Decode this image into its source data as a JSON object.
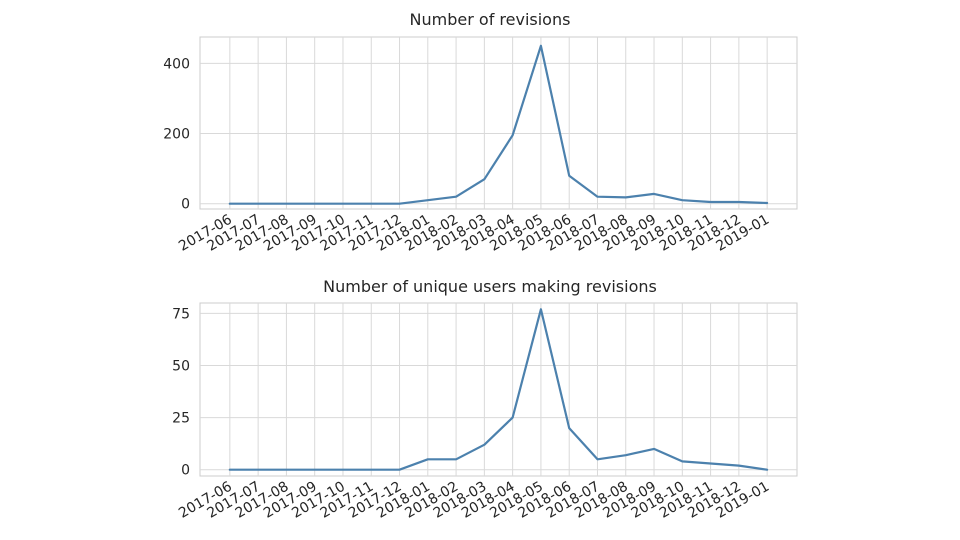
{
  "chart_data": [
    {
      "type": "line",
      "title": "Number of revisions",
      "xlabel": "",
      "ylabel": "",
      "x": [
        "2017-06",
        "2017-07",
        "2017-08",
        "2017-09",
        "2017-10",
        "2017-11",
        "2017-12",
        "2018-01",
        "2018-02",
        "2018-03",
        "2018-04",
        "2018-05",
        "2018-06",
        "2018-07",
        "2018-08",
        "2018-09",
        "2018-10",
        "2018-11",
        "2018-12",
        "2019-01"
      ],
      "series": [
        {
          "values": [
            0,
            0,
            0,
            0,
            0,
            0,
            0,
            10,
            20,
            70,
            195,
            450,
            80,
            20,
            18,
            28,
            10,
            5,
            5,
            2
          ]
        }
      ],
      "ylim": [
        -15,
        475
      ],
      "yticks": [
        0,
        200,
        400
      ],
      "grid": true,
      "color": "#4c81ad"
    },
    {
      "type": "line",
      "title": "Number of unique users making revisions",
      "xlabel": "",
      "ylabel": "",
      "x": [
        "2017-06",
        "2017-07",
        "2017-08",
        "2017-09",
        "2017-10",
        "2017-11",
        "2017-12",
        "2018-01",
        "2018-02",
        "2018-03",
        "2018-04",
        "2018-05",
        "2018-06",
        "2018-07",
        "2018-08",
        "2018-09",
        "2018-10",
        "2018-11",
        "2018-12",
        "2019-01"
      ],
      "series": [
        {
          "values": [
            0,
            0,
            0,
            0,
            0,
            0,
            0,
            5,
            5,
            12,
            25,
            77,
            20,
            5,
            7,
            10,
            4,
            3,
            2,
            0
          ]
        }
      ],
      "ylim": [
        -3,
        80
      ],
      "yticks": [
        0,
        25,
        50,
        75
      ],
      "grid": true,
      "color": "#4c81ad"
    }
  ]
}
